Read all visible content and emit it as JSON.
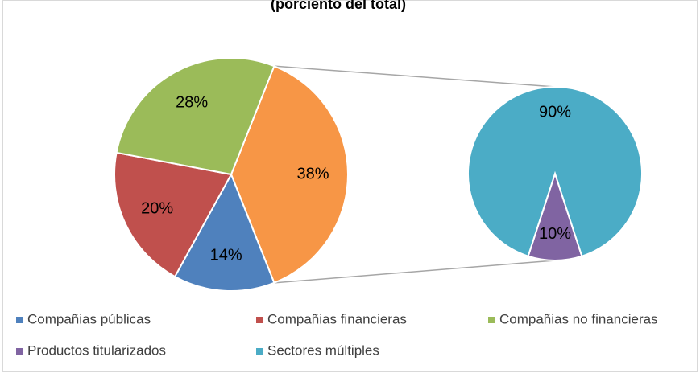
{
  "chart_data": {
    "type": "pie-of-pie",
    "title": "(porciento del total)",
    "main": {
      "categories": [
        "Compañias públicas",
        "Compañias financieras",
        "Compañias no financieras",
        null
      ],
      "values": [
        14,
        20,
        28,
        38
      ],
      "value_labels": [
        "14%",
        "20%",
        "28%",
        "38%"
      ],
      "colors": [
        "#4f81bd",
        "#c0504d",
        "#9bbb59",
        "#f79646"
      ]
    },
    "secondary": {
      "categories": [
        "Productos titularizados",
        "Sectores múltiples"
      ],
      "values": [
        10,
        90
      ],
      "value_labels": [
        "10%",
        "90%"
      ],
      "colors": [
        "#8064a2",
        "#4bacc6"
      ]
    },
    "legend": "bottom"
  }
}
